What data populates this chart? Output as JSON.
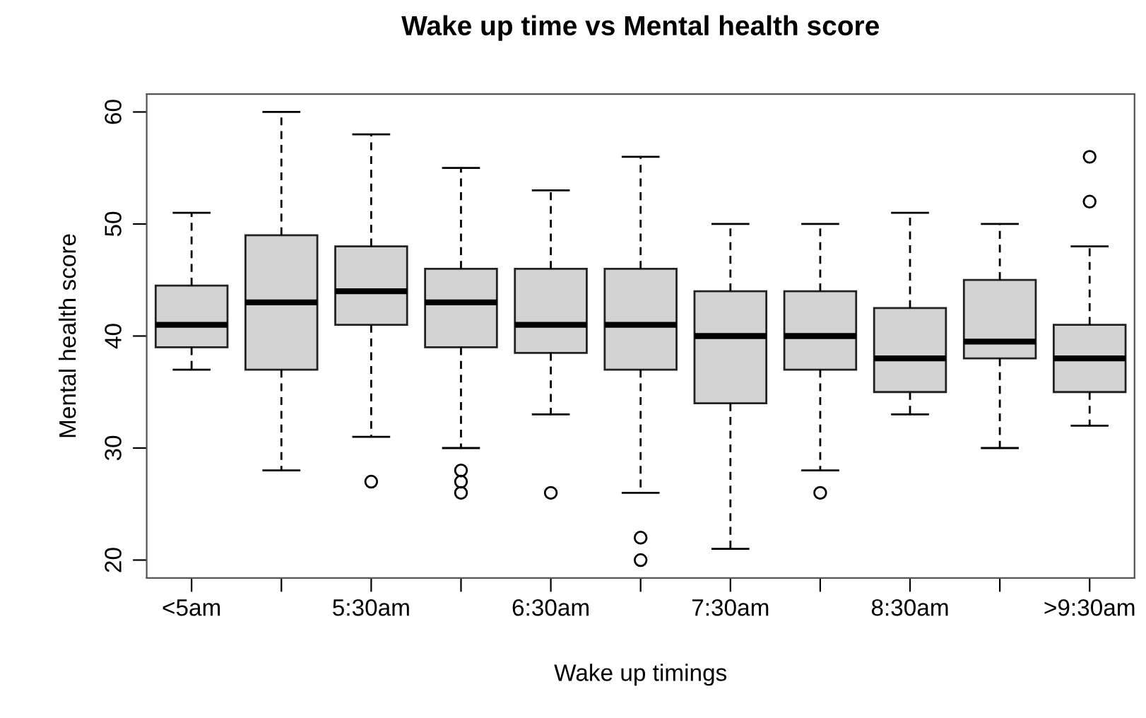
{
  "chart_data": {
    "type": "box",
    "title": "Wake up time vs Mental health score",
    "xlabel": "Wake up timings",
    "ylabel": "Mental health score",
    "categories": [
      "<5am",
      null,
      "5:30am",
      null,
      "6:30am",
      null,
      "7:30am",
      null,
      "8:30am",
      null,
      ">9:30am"
    ],
    "color": "#d3d3d3",
    "boxes": [
      {
        "low": 37,
        "q1": 39,
        "median": 41,
        "q3": 44.5,
        "high": 51
      },
      {
        "low": 28,
        "q1": 37,
        "median": 43,
        "q3": 49,
        "high": 60
      },
      {
        "low": 31,
        "q1": 41,
        "median": 44,
        "q3": 48,
        "high": 58,
        "outliers": [
          27
        ]
      },
      {
        "low": 30,
        "q1": 39,
        "median": 43,
        "q3": 46,
        "high": 55,
        "outliers": [
          28,
          27,
          26
        ]
      },
      {
        "low": 33,
        "q1": 38.5,
        "median": 41,
        "q3": 46,
        "high": 53,
        "outliers": [
          26
        ]
      },
      {
        "low": 26,
        "q1": 37,
        "median": 41,
        "q3": 46,
        "high": 56,
        "outliers": [
          22,
          20
        ]
      },
      {
        "low": 21,
        "q1": 34,
        "median": 40,
        "q3": 44,
        "high": 50
      },
      {
        "low": 28,
        "q1": 37,
        "median": 40,
        "q3": 44,
        "high": 50,
        "outliers": [
          26
        ]
      },
      {
        "low": 33,
        "q1": 35,
        "median": 38,
        "q3": 42.5,
        "high": 51
      },
      {
        "low": 30,
        "q1": 38,
        "median": 39.5,
        "q3": 45,
        "high": 50
      },
      {
        "low": 32,
        "q1": 35,
        "median": 38,
        "q3": 41,
        "high": 48,
        "outliers": [
          52,
          56
        ]
      }
    ],
    "ylim": [
      18.4,
      61.6
    ],
    "yticks": [
      20,
      30,
      40,
      50,
      60
    ],
    "grid": false,
    "legend": false
  }
}
